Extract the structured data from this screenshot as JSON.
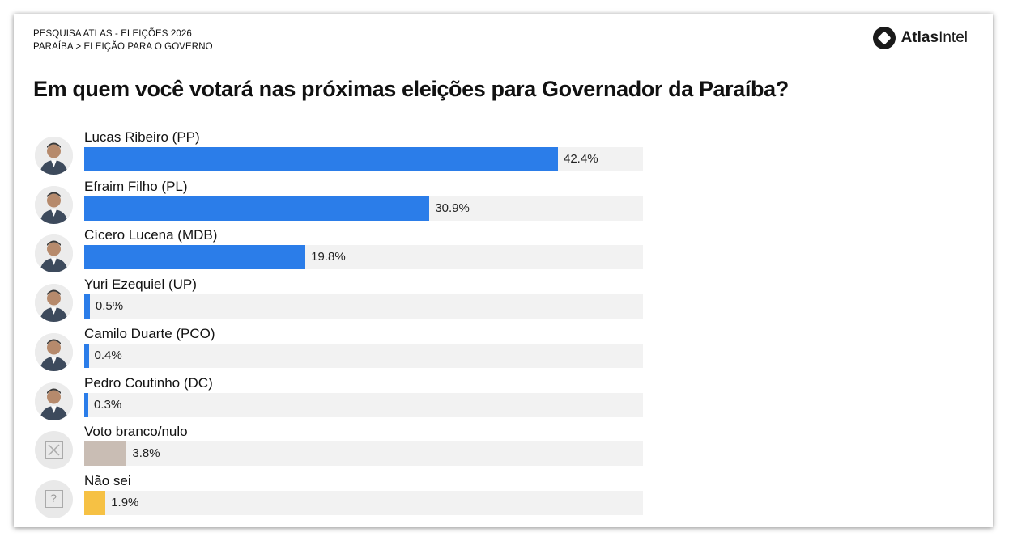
{
  "header": {
    "survey": "PESQUISA ATLAS - ELEIÇÕES 2026",
    "breadcrumb": "PARAÍBA > ELEIÇÃO PARA O GOVERNO",
    "brand_bold": "Atlas",
    "brand_light": "Intel"
  },
  "chart_data": {
    "type": "bar",
    "orientation": "horizontal",
    "title": "Em quem você votará nas próximas eleições para Governador da Paraíba?",
    "xlim": [
      0,
      50
    ],
    "categories": [
      "Lucas Ribeiro (PP)",
      "Efraim Filho (PL)",
      "Cícero Lucena (MDB)",
      "Yuri Ezequiel (UP)",
      "Camilo Duarte (PCO)",
      "Pedro Coutinho (DC)",
      "Voto branco/nulo",
      "Não sei"
    ],
    "values": [
      42.4,
      30.9,
      19.8,
      0.5,
      0.4,
      0.3,
      3.8,
      1.9
    ],
    "value_labels": [
      "42.4%",
      "30.9%",
      "19.8%",
      "0.5%",
      "0.4%",
      "0.3%",
      "3.8%",
      "1.9%"
    ],
    "colors": [
      "#2b7de9",
      "#2b7de9",
      "#2b7de9",
      "#2b7de9",
      "#2b7de9",
      "#2b7de9",
      "#c9bdb4",
      "#f6c144"
    ],
    "avatars": [
      "person-photo",
      "person-photo",
      "person-photo",
      "person-photo",
      "person-photo",
      "person-photo",
      "blank-vote-icon",
      "question-icon"
    ]
  }
}
